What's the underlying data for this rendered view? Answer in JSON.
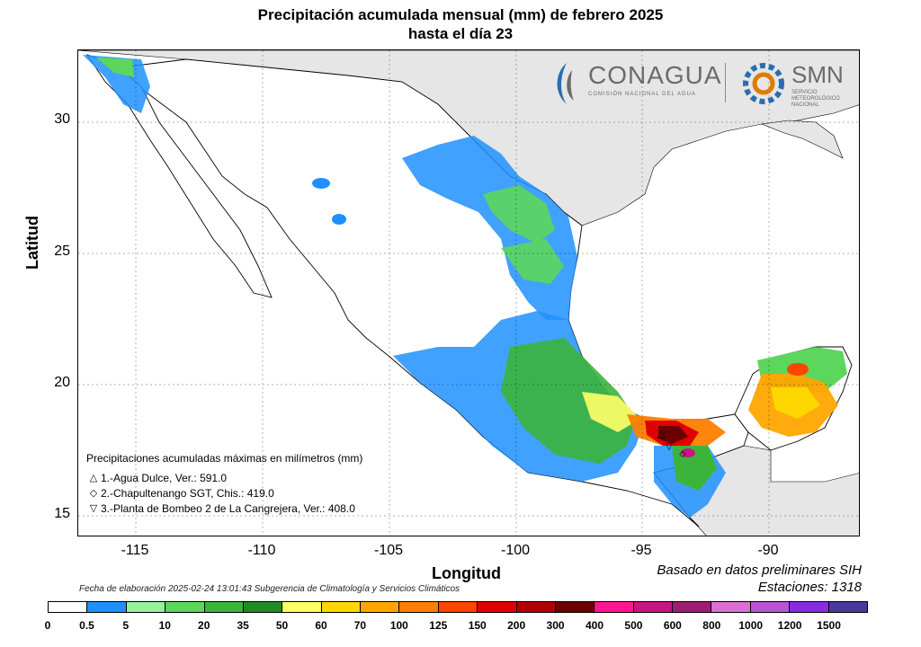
{
  "title": {
    "line1": "Precipitación acumulada mensual (mm) de febrero 2025",
    "line2": "hasta el día 23"
  },
  "axes": {
    "ylabel": "Latitud",
    "xlabel": "Longitud",
    "yticks": [
      "30",
      "25",
      "20",
      "15"
    ],
    "xticks": [
      "-115",
      "-110",
      "-105",
      "-100",
      "-95",
      "-90"
    ]
  },
  "logos": {
    "conagua": "CONAGUA",
    "conagua_sub": "COMISIÓN NACIONAL DEL AGUA",
    "smn": "SMN",
    "smn_sub": "SERVICIO METEOROLÓGICO NACIONAL"
  },
  "legend": {
    "title": "Precipitaciones acumuladas máximas en milímetros (mm)",
    "items": [
      {
        "symbol": "△",
        "text": "1.-Agua Dulce, Ver.: 591.0"
      },
      {
        "symbol": "◇",
        "text": "2.-Chapultenango SGT, Chis.: 419.0"
      },
      {
        "symbol": "▽",
        "text": "3.-Planta de Bombeo 2 de La Cangrejera, Ver.: 408.0"
      }
    ]
  },
  "footer": {
    "credit": "Fecha de elaboración 2025-02-24 13:01:43 Subgerencia de Climatología y Servicios Climáticos",
    "basado": "Basado en datos preliminares SIH",
    "estaciones": "Estaciones:  1318"
  },
  "colorbar": {
    "labels": [
      "0",
      "0.5",
      "5",
      "10",
      "20",
      "35",
      "50",
      "60",
      "70",
      "100",
      "125",
      "150",
      "200",
      "300",
      "400",
      "500",
      "600",
      "800",
      "1000",
      "1200",
      "1500"
    ],
    "colors": [
      "#ffffff",
      "#1e90ff",
      "#98f098",
      "#5cd65c",
      "#3cb43c",
      "#228b22",
      "#ffff66",
      "#ffd700",
      "#ffa500",
      "#ff7f00",
      "#ff4500",
      "#e00000",
      "#b00000",
      "#6b0000",
      "#ff1493",
      "#c71585",
      "#9b1f72",
      "#da70d6",
      "#ba55d3",
      "#8a2be2",
      "#4b3a9c"
    ]
  },
  "map_colors": {
    "land": "#ffffff",
    "outside": "#e6e6e6",
    "ocean": "#ffffff",
    "border": "#000000",
    "state": "#000000"
  }
}
